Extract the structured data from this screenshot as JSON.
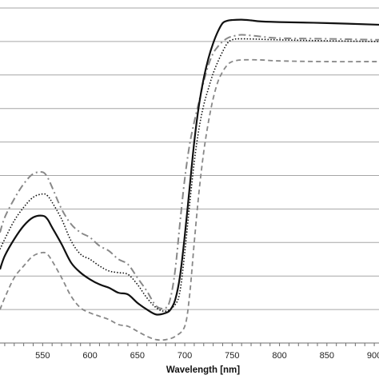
{
  "chart_data": {
    "type": "line",
    "title": "",
    "xlabel": "Wavelength [nm]",
    "ylabel": "",
    "xlim": [
      505,
      905
    ],
    "ylim": [
      0,
      10
    ],
    "x_ticks": [
      "550",
      "600",
      "650",
      "700",
      "750",
      "800",
      "850",
      "900"
    ],
    "grid": "horizontal",
    "legend": "none",
    "series": [
      {
        "style": "solid",
        "color": "#111111",
        "x": [
          505,
          510,
          520,
          530,
          540,
          550,
          555,
          560,
          570,
          580,
          590,
          600,
          610,
          620,
          630,
          640,
          650,
          660,
          670,
          680,
          685,
          690,
          695,
          700,
          705,
          710,
          715,
          720,
          725,
          730,
          735,
          740,
          745,
          750,
          760,
          770,
          780,
          800,
          850,
          905
        ],
        "y": [
          2.2,
          2.6,
          3.1,
          3.5,
          3.75,
          3.8,
          3.7,
          3.45,
          2.95,
          2.4,
          2.1,
          1.9,
          1.75,
          1.65,
          1.5,
          1.45,
          1.2,
          1.0,
          0.85,
          0.9,
          1.0,
          1.3,
          2.0,
          3.2,
          4.6,
          6.0,
          7.1,
          7.9,
          8.5,
          8.95,
          9.3,
          9.55,
          9.62,
          9.64,
          9.65,
          9.63,
          9.6,
          9.58,
          9.55,
          9.5
        ]
      },
      {
        "style": "dotted",
        "color": "#111111",
        "x": [
          505,
          510,
          520,
          530,
          540,
          550,
          555,
          560,
          570,
          580,
          590,
          600,
          610,
          620,
          630,
          640,
          650,
          660,
          670,
          680,
          690,
          695,
          700,
          705,
          710,
          715,
          720,
          725,
          730,
          735,
          740,
          745,
          750,
          760,
          800,
          850,
          905
        ],
        "y": [
          2.8,
          3.1,
          3.65,
          4.05,
          4.35,
          4.45,
          4.4,
          4.2,
          3.7,
          3.05,
          2.65,
          2.5,
          2.3,
          2.15,
          2.1,
          2.05,
          1.75,
          1.35,
          1.05,
          0.95,
          1.15,
          1.55,
          2.7,
          4.1,
          5.4,
          6.4,
          7.1,
          7.6,
          8.05,
          8.4,
          8.7,
          8.95,
          9.05,
          9.08,
          9.05,
          9.02,
          9.0
        ]
      },
      {
        "style": "dash-dot",
        "color": "#888888",
        "x": [
          505,
          510,
          520,
          530,
          540,
          550,
          555,
          560,
          570,
          580,
          590,
          600,
          610,
          620,
          630,
          640,
          650,
          660,
          670,
          680,
          685,
          690,
          695,
          700,
          705,
          710,
          715,
          720,
          725,
          730,
          735,
          740,
          745,
          750,
          760,
          780,
          800,
          850,
          905
        ],
        "y": [
          3.3,
          3.75,
          4.3,
          4.75,
          5.05,
          5.1,
          4.95,
          4.65,
          4.0,
          3.55,
          3.3,
          3.15,
          2.9,
          2.75,
          2.5,
          2.35,
          1.95,
          1.55,
          1.1,
          1.05,
          1.35,
          2.2,
          3.6,
          4.9,
          5.9,
          6.6,
          7.2,
          7.8,
          8.3,
          8.65,
          8.85,
          9.0,
          9.1,
          9.15,
          9.2,
          9.15,
          9.1,
          9.08,
          9.05
        ]
      },
      {
        "style": "dashed",
        "color": "#888888",
        "x": [
          505,
          510,
          520,
          530,
          540,
          550,
          555,
          560,
          570,
          580,
          590,
          600,
          610,
          620,
          630,
          640,
          650,
          660,
          670,
          680,
          690,
          700,
          705,
          710,
          715,
          720,
          725,
          730,
          735,
          740,
          745,
          750,
          760,
          780,
          800,
          850,
          905
        ],
        "y": [
          1.0,
          1.35,
          1.95,
          2.3,
          2.6,
          2.7,
          2.65,
          2.45,
          1.95,
          1.4,
          1.05,
          0.9,
          0.8,
          0.7,
          0.55,
          0.5,
          0.35,
          0.2,
          0.1,
          0.1,
          0.2,
          0.5,
          1.4,
          3.0,
          4.5,
          5.7,
          6.6,
          7.3,
          7.8,
          8.1,
          8.3,
          8.4,
          8.45,
          8.45,
          8.42,
          8.4,
          8.4
        ]
      }
    ]
  }
}
